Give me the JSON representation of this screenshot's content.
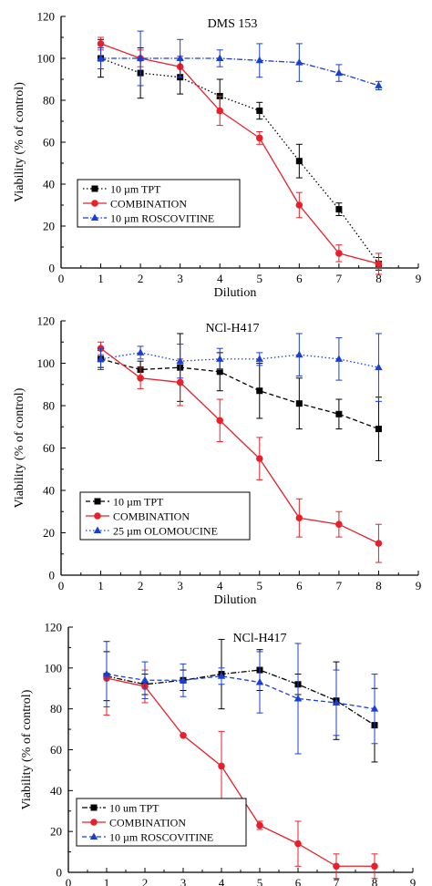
{
  "chart_data": [
    {
      "type": "line",
      "title": "DMS 153",
      "xlabel": "Dilution",
      "ylabel": "Viability (% of control)",
      "xlim": [
        0,
        9
      ],
      "ylim": [
        0,
        120
      ],
      "xticks": [
        "0",
        "1",
        "2",
        "3",
        "4",
        "5",
        "6",
        "7",
        "8",
        "9"
      ],
      "yticks": [
        "0",
        "20",
        "40",
        "60",
        "80",
        "100",
        "120"
      ],
      "legend_position": "bottom-left",
      "series": [
        {
          "name": "10 µm TPT",
          "color": "#000000",
          "marker": "square",
          "dash": "dotted",
          "x": [
            1,
            2,
            3,
            4,
            5,
            6,
            7,
            8
          ],
          "y": [
            100,
            93,
            91,
            82,
            75,
            51,
            28,
            2
          ],
          "err": [
            9,
            12,
            8,
            8,
            4,
            8,
            3,
            3
          ]
        },
        {
          "name": "COMBINATION",
          "color": "#e8202a",
          "marker": "circle",
          "dash": "solid",
          "x": [
            1,
            2,
            3,
            4,
            5,
            6,
            7,
            8
          ],
          "y": [
            107,
            100,
            96,
            75,
            62,
            30,
            7,
            2
          ],
          "err": [
            3,
            4,
            5,
            7,
            3,
            6,
            4,
            5
          ]
        },
        {
          "name": "10 µm ROSCOVITINE",
          "color": "#1a3fd6",
          "marker": "triangle",
          "dash": "dashdot",
          "x": [
            1,
            2,
            3,
            4,
            5,
            6,
            7,
            8
          ],
          "y": [
            100,
            100,
            100,
            100,
            99,
            98,
            93,
            87
          ],
          "err": [
            5,
            13,
            9,
            4,
            8,
            9,
            4,
            2
          ]
        }
      ]
    },
    {
      "type": "line",
      "title": "NCl-H417",
      "xlabel": "Dilution",
      "ylabel": "Viability (% of control)",
      "xlim": [
        0,
        9
      ],
      "ylim": [
        0,
        120
      ],
      "xticks": [
        "0",
        "1",
        "2",
        "3",
        "4",
        "5",
        "6",
        "7",
        "8",
        "9"
      ],
      "yticks": [
        "0",
        "20",
        "40",
        "60",
        "80",
        "100",
        "120"
      ],
      "legend_position": "bottom-left",
      "series": [
        {
          "name": "10 µm TPT",
          "color": "#000000",
          "marker": "square",
          "dash": "dashed",
          "x": [
            1,
            2,
            3,
            4,
            5,
            6,
            7,
            8
          ],
          "y": [
            102,
            97,
            98,
            96,
            87,
            81,
            76,
            69
          ],
          "err": [
            4,
            4,
            16,
            9,
            13,
            12,
            7,
            15
          ]
        },
        {
          "name": "COMBINATION",
          "color": "#e8202a",
          "marker": "circle",
          "dash": "solid",
          "x": [
            1,
            2,
            3,
            4,
            5,
            6,
            7,
            8
          ],
          "y": [
            107,
            93,
            91,
            73,
            55,
            27,
            24,
            15
          ],
          "err": [
            3,
            5,
            11,
            10,
            10,
            9,
            6,
            9
          ]
        },
        {
          "name": "25 µm OLOMOUCINE",
          "color": "#1a3fd6",
          "marker": "triangle",
          "dash": "dotted",
          "x": [
            1,
            2,
            3,
            4,
            5,
            6,
            7,
            8
          ],
          "y": [
            102,
            105,
            101,
            102,
            102,
            104,
            102,
            98
          ],
          "err": [
            5,
            3,
            8,
            5,
            3,
            10,
            10,
            16
          ]
        }
      ]
    },
    {
      "type": "line",
      "title": "NCl-H417",
      "xlabel": "Dilution",
      "ylabel": "Viability (% of control)",
      "xlim": [
        0,
        9
      ],
      "ylim": [
        0,
        120
      ],
      "xticks": [
        "0",
        "1",
        "2",
        "3",
        "4",
        "5",
        "6",
        "7",
        "8",
        "9"
      ],
      "yticks": [
        "0",
        "20",
        "40",
        "60",
        "80",
        "100",
        "120"
      ],
      "legend_position": "bottom-left",
      "series": [
        {
          "name": "10 um TPT",
          "color": "#000000",
          "marker": "square",
          "dash": "dashdot",
          "x": [
            1,
            2,
            3,
            4,
            5,
            6,
            7,
            8
          ],
          "y": [
            96,
            92,
            94,
            97,
            99,
            92,
            84,
            72
          ],
          "err": [
            12,
            5,
            5,
            17,
            10,
            5,
            19,
            18
          ]
        },
        {
          "name": "COMBINATION",
          "color": "#e8202a",
          "marker": "circle",
          "dash": "solid",
          "x": [
            1,
            2,
            3,
            4,
            5,
            6,
            7,
            8
          ],
          "y": [
            95,
            91,
            67,
            52,
            23,
            14,
            3,
            3
          ],
          "err": [
            18,
            8,
            0,
            17,
            2,
            11,
            6,
            6
          ]
        },
        {
          "name": "10 µm ROSCOVITINE",
          "color": "#1a3fd6",
          "marker": "triangle",
          "dash": "dashed",
          "x": [
            1,
            2,
            3,
            4,
            5,
            6,
            7,
            8
          ],
          "y": [
            97,
            94,
            94,
            96,
            93,
            85,
            83,
            80
          ],
          "err": [
            16,
            9,
            8,
            4,
            15,
            27,
            16,
            17
          ]
        }
      ]
    }
  ]
}
